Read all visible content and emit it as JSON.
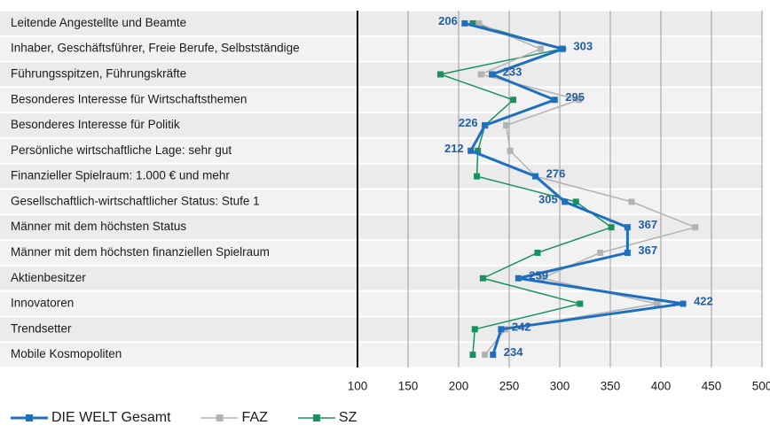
{
  "chart_data": {
    "type": "line",
    "orientation": "horizontal",
    "categories": [
      "Leitende Angestellte und Beamte",
      "Inhaber, Geschäftsführer, Freie Berufe, Selbstständige",
      "Führungsspitzen, Führungskräfte",
      "Besonderes Interesse für Wirtschaftsthemen",
      "Besonderes Interesse für Politik",
      "Persönliche wirtschaftliche Lage: sehr gut",
      "Finanzieller Spielraum: 1.000 € und mehr",
      "Gesellschaftlich-wirtschaftlicher Status: Stufe 1",
      "Männer mit dem höchsten Status",
      "Männer mit dem höchsten finanziellen Spielraum",
      "Aktienbesitzer",
      "Innovatoren",
      "Trendsetter",
      "Mobile Kosmopoliten"
    ],
    "series": [
      {
        "name": "DIE WELT Gesamt",
        "color": "#1f6fc0",
        "values": [
          206,
          303,
          233,
          295,
          226,
          212,
          276,
          305,
          367,
          367,
          259,
          422,
          242,
          234
        ]
      },
      {
        "name": "FAZ",
        "color": "#b3b3b3",
        "values": [
          220,
          281,
          222,
          319,
          247,
          251,
          276,
          371,
          434,
          340,
          282,
          396,
          246,
          226
        ]
      },
      {
        "name": "SZ",
        "color": "#17925d",
        "values": [
          214,
          302,
          182,
          254,
          226,
          219,
          218,
          316,
          351,
          278,
          224,
          320,
          216,
          214
        ]
      }
    ],
    "xlim": [
      100,
      500
    ],
    "xticks": [
      100,
      150,
      200,
      250,
      300,
      350,
      400,
      450,
      500
    ],
    "grid": true,
    "data_labels_series": 0,
    "legend": "bottom-left"
  }
}
